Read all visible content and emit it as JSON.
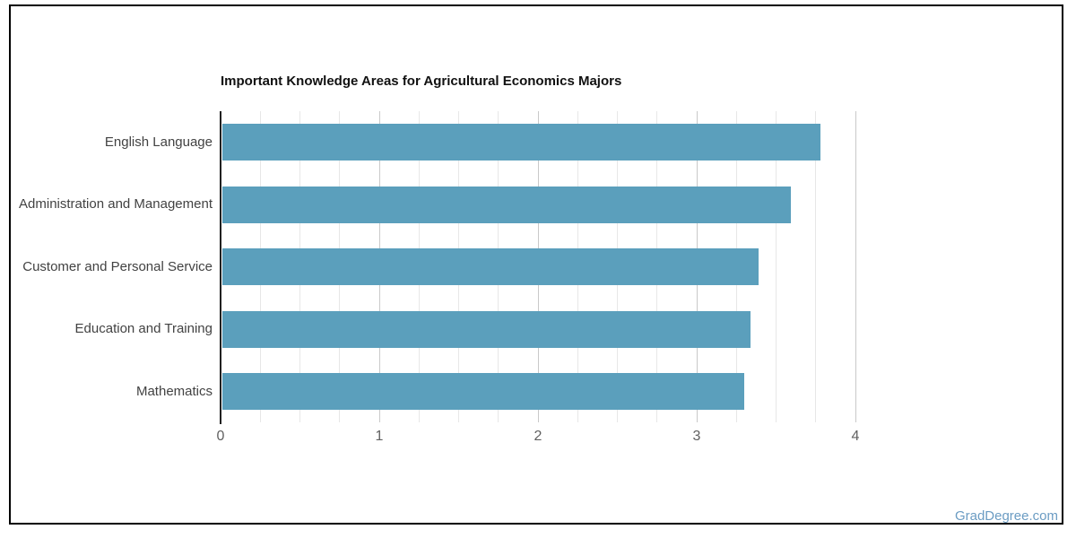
{
  "chart_data": {
    "type": "bar",
    "orientation": "horizontal",
    "title": "Important Knowledge Areas for Agricultural Economics Majors",
    "categories": [
      "English Language",
      "Administration and Management",
      "Customer and Personal Service",
      "Education and Training",
      "Mathematics"
    ],
    "values": [
      3.77,
      3.58,
      3.38,
      3.33,
      3.29
    ],
    "xlabel": "",
    "ylabel": "",
    "xlim": [
      0,
      4
    ],
    "x_ticks": [
      0,
      1,
      2,
      3,
      4
    ],
    "minor_tick_step": 0.25,
    "grid": true,
    "legend_position": "none",
    "bar_color": "#5b9fbc",
    "axis_line_color": "#212121",
    "major_grid_color": "#c9c9c9",
    "minor_grid_color": "#e7e7e7",
    "tick_label_color": "#616161",
    "category_label_color": "#424242",
    "title_color": "#111111"
  },
  "watermark": {
    "text": "GradDegree.com",
    "color": "#6b9cc3"
  }
}
